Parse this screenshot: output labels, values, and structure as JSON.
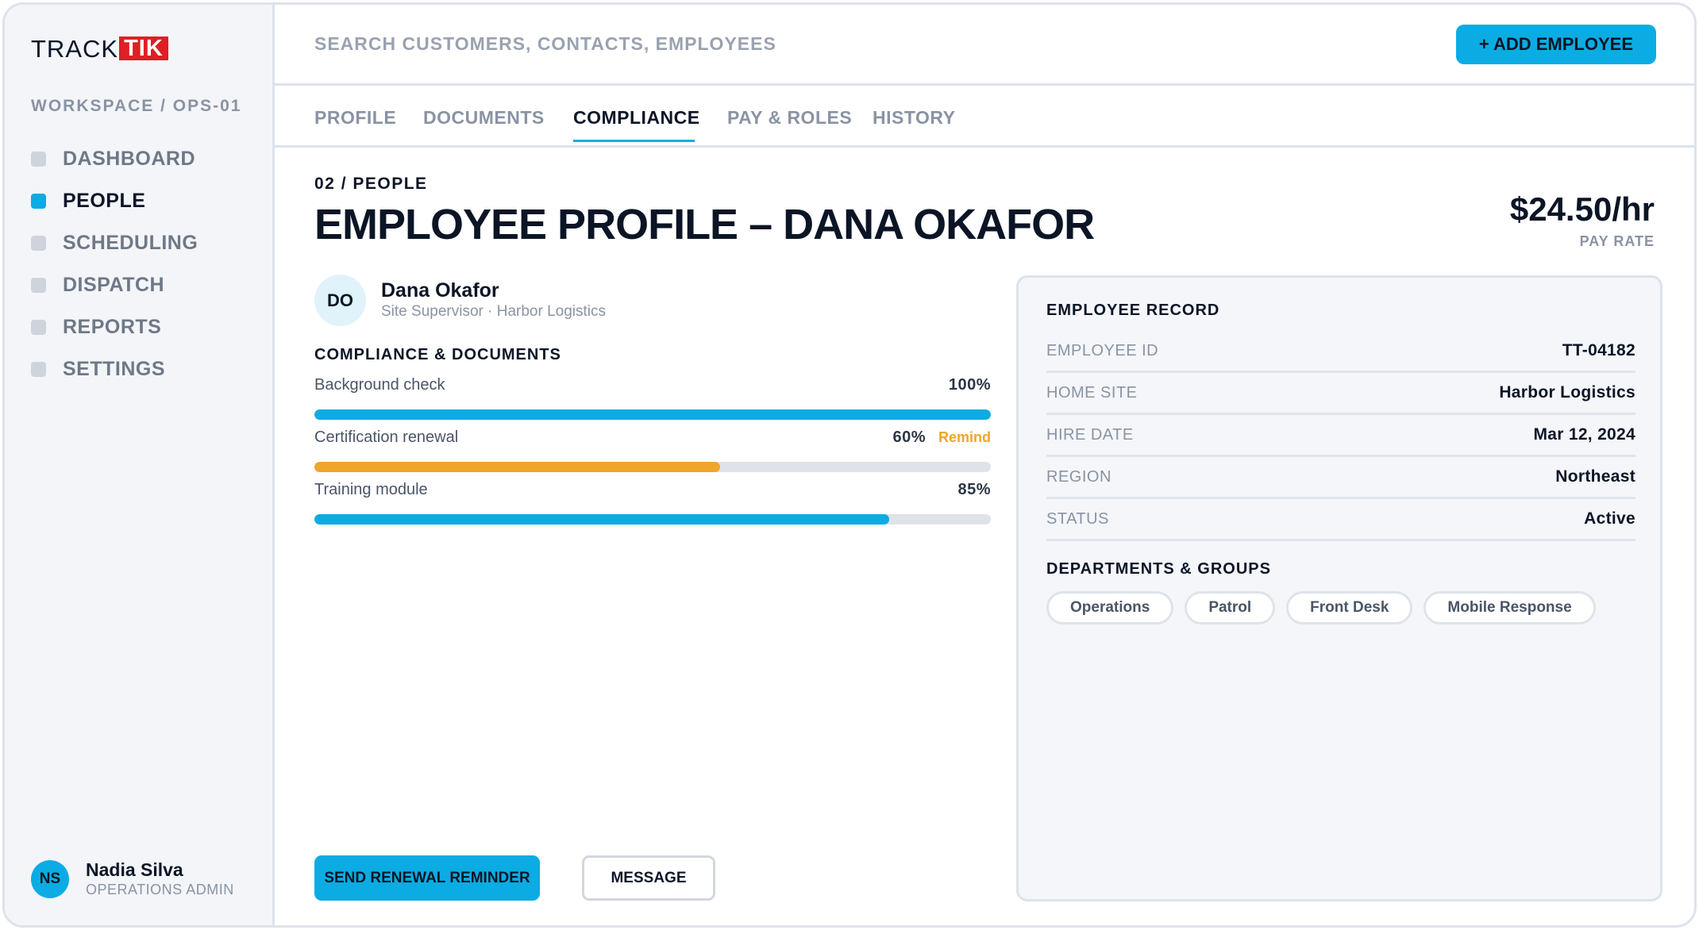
{
  "brand": {
    "logo_part1": "TRACK",
    "logo_part2": "TIK",
    "logo_accent_color": "#e01e25"
  },
  "sidebar": {
    "workspace": "WORKSPACE / OPS-01",
    "items": [
      {
        "label": "DASHBOARD",
        "active": false
      },
      {
        "label": "PEOPLE",
        "active": true
      },
      {
        "label": "SCHEDULING",
        "active": false
      },
      {
        "label": "DISPATCH",
        "active": false
      },
      {
        "label": "REPORTS",
        "active": false
      },
      {
        "label": "SETTINGS",
        "active": false
      }
    ],
    "user": {
      "initials": "NS",
      "name": "Nadia Silva",
      "role": "OPERATIONS ADMIN"
    }
  },
  "topbar": {
    "search_placeholder": "SEARCH CUSTOMERS, CONTACTS, EMPLOYEES",
    "add_button": "+ ADD EMPLOYEE"
  },
  "tabs": [
    {
      "label": "PROFILE",
      "active": false
    },
    {
      "label": "DOCUMENTS",
      "active": false
    },
    {
      "label": "COMPLIANCE",
      "active": true
    },
    {
      "label": "PAY & ROLES",
      "active": false
    },
    {
      "label": "HISTORY",
      "active": false
    }
  ],
  "main": {
    "breadcrumb": "02 / PEOPLE",
    "title": "EMPLOYEE PROFILE – DANA OKAFOR",
    "pay_rate": "$24.50/hr",
    "pay_rate_label": "PAY RATE",
    "employee": {
      "initials": "DO",
      "name": "Dana Okafor",
      "subtitle": "Site Supervisor · Harbor Logistics"
    },
    "compliance_heading": "COMPLIANCE & DOCUMENTS",
    "compliance": [
      {
        "label": "Background check",
        "percent_text": "100%",
        "percent": 100,
        "status": "ok",
        "action": ""
      },
      {
        "label": "Certification renewal",
        "percent_text": "60%",
        "percent": 60,
        "status": "warning",
        "action": "Remind"
      },
      {
        "label": "Training module",
        "percent_text": "85%",
        "percent": 85,
        "status": "ok",
        "action": ""
      }
    ],
    "actions": {
      "primary": "SEND RENEWAL REMINDER",
      "secondary": "MESSAGE"
    }
  },
  "record": {
    "heading": "EMPLOYEE RECORD",
    "rows": [
      {
        "key": "EMPLOYEE ID",
        "value": "TT-04182"
      },
      {
        "key": "HOME SITE",
        "value": "Harbor Logistics"
      },
      {
        "key": "HIRE DATE",
        "value": "Mar 12, 2024"
      },
      {
        "key": "REGION",
        "value": "Northeast"
      },
      {
        "key": "STATUS",
        "value": "Active"
      }
    ],
    "groups_heading": "DEPARTMENTS & GROUPS",
    "groups": [
      "Operations",
      "Patrol",
      "Front Desk",
      "Mobile Response"
    ]
  },
  "colors": {
    "accent": "#0aace3",
    "warning": "#f0a52b",
    "text": "#0b1526",
    "muted": "#8a93a3"
  }
}
